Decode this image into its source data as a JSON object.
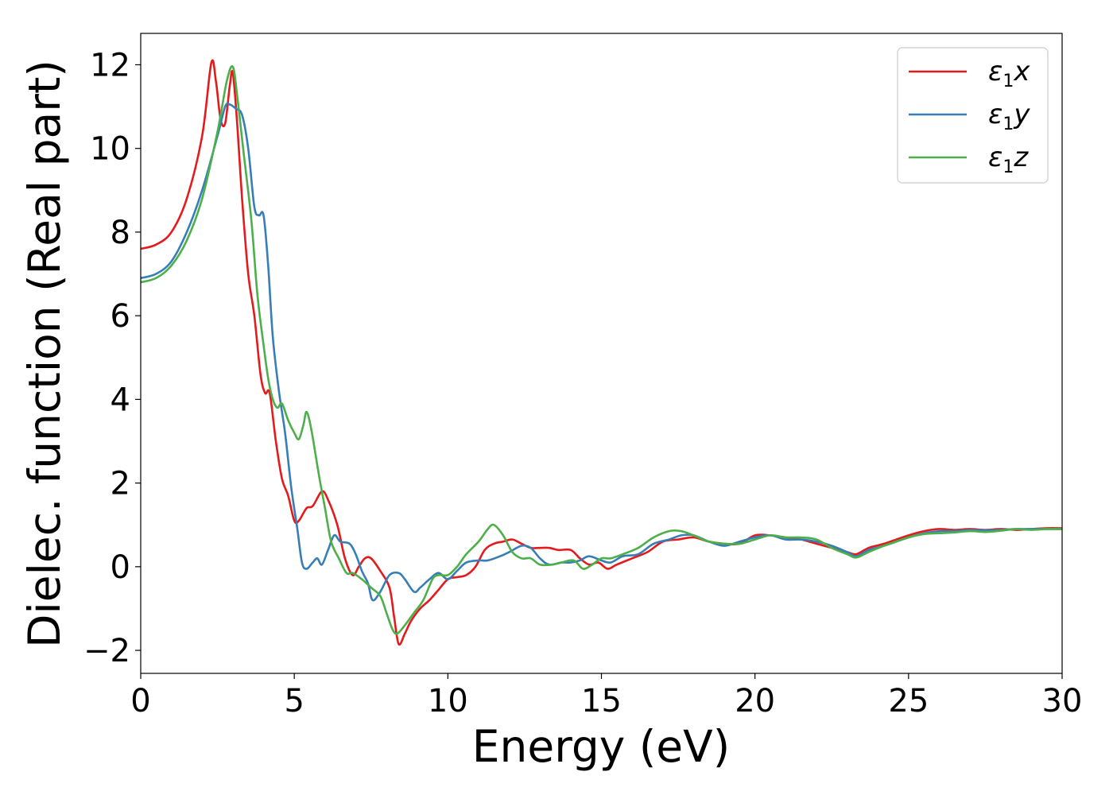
{
  "chart_data": {
    "type": "line",
    "xlabel": "Energy (eV)",
    "ylabel": "Dielec. function (Real part)",
    "xlim": [
      0,
      30
    ],
    "ylim": [
      -2.55,
      12.75
    ],
    "xticks": [
      0,
      5,
      10,
      15,
      20,
      25,
      30
    ],
    "yticks": [
      -2,
      0,
      2,
      4,
      6,
      8,
      10,
      12
    ],
    "ytick_labels": [
      "−2",
      "0",
      "2",
      "4",
      "6",
      "8",
      "10",
      "12"
    ],
    "grid": false,
    "legend_position": "top-right",
    "series": [
      {
        "name": "ε1x",
        "symbol": "ε",
        "subscript": "1",
        "component": "x",
        "color": "#e41a1c",
        "points": [
          [
            0,
            7.6
          ],
          [
            0.5,
            7.7
          ],
          [
            1,
            8.0
          ],
          [
            1.5,
            8.8
          ],
          [
            2,
            10.3
          ],
          [
            2.3,
            12.05
          ],
          [
            2.45,
            11.6
          ],
          [
            2.6,
            10.7
          ],
          [
            2.75,
            10.6
          ],
          [
            2.9,
            11.5
          ],
          [
            3.0,
            11.8
          ],
          [
            3.15,
            10.5
          ],
          [
            3.3,
            8.8
          ],
          [
            3.5,
            7.0
          ],
          [
            3.7,
            6.0
          ],
          [
            3.9,
            4.6
          ],
          [
            4.05,
            4.15
          ],
          [
            4.2,
            4.15
          ],
          [
            4.4,
            3.0
          ],
          [
            4.6,
            2.1
          ],
          [
            4.8,
            1.7
          ],
          [
            5.0,
            1.1
          ],
          [
            5.15,
            1.1
          ],
          [
            5.4,
            1.4
          ],
          [
            5.6,
            1.45
          ],
          [
            5.9,
            1.8
          ],
          [
            6.1,
            1.6
          ],
          [
            6.4,
            1.0
          ],
          [
            6.65,
            0.2
          ],
          [
            6.9,
            -0.2
          ],
          [
            7.1,
            0.0
          ],
          [
            7.3,
            0.2
          ],
          [
            7.5,
            0.2
          ],
          [
            7.8,
            -0.1
          ],
          [
            8.1,
            -0.5
          ],
          [
            8.25,
            -1.2
          ],
          [
            8.4,
            -1.85
          ],
          [
            8.6,
            -1.6
          ],
          [
            8.8,
            -1.3
          ],
          [
            9.1,
            -1.0
          ],
          [
            9.4,
            -0.8
          ],
          [
            9.7,
            -0.55
          ],
          [
            10.0,
            -0.3
          ],
          [
            10.3,
            -0.25
          ],
          [
            10.6,
            -0.2
          ],
          [
            10.9,
            0.0
          ],
          [
            11.2,
            0.4
          ],
          [
            11.5,
            0.55
          ],
          [
            11.8,
            0.6
          ],
          [
            12.1,
            0.65
          ],
          [
            12.4,
            0.55
          ],
          [
            12.7,
            0.45
          ],
          [
            13.0,
            0.45
          ],
          [
            13.3,
            0.45
          ],
          [
            13.6,
            0.4
          ],
          [
            14.0,
            0.4
          ],
          [
            14.3,
            0.2
          ],
          [
            14.6,
            0.05
          ],
          [
            14.9,
            0.1
          ],
          [
            15.2,
            -0.05
          ],
          [
            15.5,
            0.05
          ],
          [
            16.0,
            0.2
          ],
          [
            16.5,
            0.35
          ],
          [
            17.0,
            0.6
          ],
          [
            17.5,
            0.65
          ],
          [
            18.0,
            0.7
          ],
          [
            18.5,
            0.6
          ],
          [
            19.0,
            0.55
          ],
          [
            19.5,
            0.55
          ],
          [
            20.0,
            0.75
          ],
          [
            20.5,
            0.75
          ],
          [
            21.0,
            0.7
          ],
          [
            21.5,
            0.65
          ],
          [
            22.0,
            0.55
          ],
          [
            22.5,
            0.45
          ],
          [
            23.0,
            0.35
          ],
          [
            23.3,
            0.3
          ],
          [
            23.7,
            0.45
          ],
          [
            24.2,
            0.55
          ],
          [
            25.0,
            0.75
          ],
          [
            25.5,
            0.85
          ],
          [
            26.0,
            0.9
          ],
          [
            26.5,
            0.88
          ],
          [
            27.0,
            0.9
          ],
          [
            27.5,
            0.88
          ],
          [
            28.0,
            0.9
          ],
          [
            28.5,
            0.88
          ],
          [
            29.0,
            0.9
          ],
          [
            29.5,
            0.92
          ],
          [
            30.0,
            0.92
          ]
        ]
      },
      {
        "name": "ε1y",
        "symbol": "ε",
        "subscript": "1",
        "component": "y",
        "color": "#377eb8",
        "points": [
          [
            0,
            6.9
          ],
          [
            0.5,
            7.0
          ],
          [
            1,
            7.3
          ],
          [
            1.5,
            8.0
          ],
          [
            2,
            9.0
          ],
          [
            2.5,
            10.3
          ],
          [
            2.75,
            11.0
          ],
          [
            2.9,
            11.05
          ],
          [
            3.1,
            10.95
          ],
          [
            3.3,
            10.8
          ],
          [
            3.5,
            10.0
          ],
          [
            3.7,
            8.6
          ],
          [
            3.85,
            8.4
          ],
          [
            4.0,
            8.4
          ],
          [
            4.15,
            7.2
          ],
          [
            4.3,
            5.5
          ],
          [
            4.5,
            4.2
          ],
          [
            4.7,
            3.2
          ],
          [
            4.9,
            1.9
          ],
          [
            5.1,
            0.9
          ],
          [
            5.25,
            0.1
          ],
          [
            5.4,
            -0.05
          ],
          [
            5.6,
            0.1
          ],
          [
            5.75,
            0.2
          ],
          [
            5.9,
            0.05
          ],
          [
            6.1,
            0.4
          ],
          [
            6.3,
            0.75
          ],
          [
            6.5,
            0.6
          ],
          [
            6.8,
            0.55
          ],
          [
            7.0,
            0.3
          ],
          [
            7.2,
            -0.1
          ],
          [
            7.4,
            -0.4
          ],
          [
            7.55,
            -0.8
          ],
          [
            7.8,
            -0.6
          ],
          [
            8.1,
            -0.2
          ],
          [
            8.4,
            -0.15
          ],
          [
            8.6,
            -0.3
          ],
          [
            8.9,
            -0.6
          ],
          [
            9.1,
            -0.5
          ],
          [
            9.4,
            -0.3
          ],
          [
            9.7,
            -0.15
          ],
          [
            10.0,
            -0.3
          ],
          [
            10.3,
            -0.1
          ],
          [
            10.6,
            0.1
          ],
          [
            11.0,
            0.15
          ],
          [
            11.3,
            0.15
          ],
          [
            11.7,
            0.25
          ],
          [
            12.0,
            0.35
          ],
          [
            12.4,
            0.5
          ],
          [
            12.7,
            0.45
          ],
          [
            13.0,
            0.2
          ],
          [
            13.3,
            0.05
          ],
          [
            13.7,
            0.1
          ],
          [
            14.0,
            0.1
          ],
          [
            14.3,
            0.15
          ],
          [
            14.6,
            0.25
          ],
          [
            15.0,
            0.15
          ],
          [
            15.3,
            0.1
          ],
          [
            15.7,
            0.25
          ],
          [
            16.2,
            0.3
          ],
          [
            16.7,
            0.55
          ],
          [
            17.2,
            0.65
          ],
          [
            17.6,
            0.75
          ],
          [
            18.0,
            0.75
          ],
          [
            18.5,
            0.6
          ],
          [
            19.0,
            0.5
          ],
          [
            19.5,
            0.6
          ],
          [
            20.0,
            0.7
          ],
          [
            20.5,
            0.75
          ],
          [
            21.0,
            0.65
          ],
          [
            21.5,
            0.65
          ],
          [
            22.0,
            0.6
          ],
          [
            22.5,
            0.5
          ],
          [
            23.0,
            0.35
          ],
          [
            23.3,
            0.25
          ],
          [
            23.7,
            0.4
          ],
          [
            24.2,
            0.5
          ],
          [
            25.0,
            0.7
          ],
          [
            25.5,
            0.8
          ],
          [
            26.0,
            0.85
          ],
          [
            26.5,
            0.85
          ],
          [
            27.0,
            0.88
          ],
          [
            27.5,
            0.87
          ],
          [
            28.0,
            0.88
          ],
          [
            28.5,
            0.9
          ],
          [
            29.0,
            0.9
          ],
          [
            29.5,
            0.9
          ],
          [
            30.0,
            0.9
          ]
        ]
      },
      {
        "name": "ε1z",
        "symbol": "ε",
        "subscript": "1",
        "component": "z",
        "color": "#4daf4a",
        "points": [
          [
            0,
            6.8
          ],
          [
            0.5,
            6.9
          ],
          [
            1,
            7.2
          ],
          [
            1.5,
            7.8
          ],
          [
            2,
            8.8
          ],
          [
            2.5,
            10.4
          ],
          [
            2.8,
            11.6
          ],
          [
            3.0,
            11.95
          ],
          [
            3.15,
            11.2
          ],
          [
            3.35,
            9.9
          ],
          [
            3.6,
            8.3
          ],
          [
            3.8,
            6.5
          ],
          [
            4.0,
            5.3
          ],
          [
            4.15,
            4.5
          ],
          [
            4.3,
            4.0
          ],
          [
            4.45,
            3.8
          ],
          [
            4.6,
            3.9
          ],
          [
            4.8,
            3.5
          ],
          [
            5.0,
            3.2
          ],
          [
            5.15,
            3.05
          ],
          [
            5.3,
            3.4
          ],
          [
            5.4,
            3.7
          ],
          [
            5.55,
            3.3
          ],
          [
            5.8,
            2.2
          ],
          [
            6.0,
            1.4
          ],
          [
            6.2,
            0.6
          ],
          [
            6.45,
            0.2
          ],
          [
            6.7,
            -0.15
          ],
          [
            6.9,
            -0.15
          ],
          [
            7.2,
            -0.3
          ],
          [
            7.5,
            -0.5
          ],
          [
            7.8,
            -0.7
          ],
          [
            8.0,
            -1.1
          ],
          [
            8.2,
            -1.5
          ],
          [
            8.35,
            -1.6
          ],
          [
            8.6,
            -1.4
          ],
          [
            8.9,
            -1.1
          ],
          [
            9.2,
            -0.8
          ],
          [
            9.5,
            -0.3
          ],
          [
            9.7,
            -0.2
          ],
          [
            10.0,
            -0.2
          ],
          [
            10.3,
            0.0
          ],
          [
            10.6,
            0.3
          ],
          [
            11.0,
            0.6
          ],
          [
            11.3,
            0.9
          ],
          [
            11.5,
            1.0
          ],
          [
            11.8,
            0.75
          ],
          [
            12.1,
            0.35
          ],
          [
            12.4,
            0.2
          ],
          [
            12.7,
            0.2
          ],
          [
            13.0,
            0.05
          ],
          [
            13.4,
            0.05
          ],
          [
            13.7,
            0.1
          ],
          [
            14.1,
            0.15
          ],
          [
            14.4,
            -0.05
          ],
          [
            14.7,
            0.05
          ],
          [
            15.0,
            0.2
          ],
          [
            15.3,
            0.2
          ],
          [
            15.7,
            0.3
          ],
          [
            16.2,
            0.45
          ],
          [
            16.7,
            0.7
          ],
          [
            17.2,
            0.85
          ],
          [
            17.6,
            0.85
          ],
          [
            18.0,
            0.75
          ],
          [
            18.5,
            0.6
          ],
          [
            19.0,
            0.55
          ],
          [
            19.5,
            0.55
          ],
          [
            20.0,
            0.65
          ],
          [
            20.5,
            0.75
          ],
          [
            21.0,
            0.7
          ],
          [
            21.5,
            0.7
          ],
          [
            22.0,
            0.65
          ],
          [
            22.5,
            0.45
          ],
          [
            23.0,
            0.3
          ],
          [
            23.3,
            0.22
          ],
          [
            23.7,
            0.35
          ],
          [
            24.2,
            0.5
          ],
          [
            25.0,
            0.7
          ],
          [
            25.5,
            0.78
          ],
          [
            26.0,
            0.8
          ],
          [
            26.5,
            0.82
          ],
          [
            27.0,
            0.85
          ],
          [
            27.5,
            0.83
          ],
          [
            28.0,
            0.86
          ],
          [
            28.5,
            0.9
          ],
          [
            29.0,
            0.88
          ],
          [
            29.5,
            0.9
          ],
          [
            30.0,
            0.9
          ]
        ]
      }
    ]
  }
}
